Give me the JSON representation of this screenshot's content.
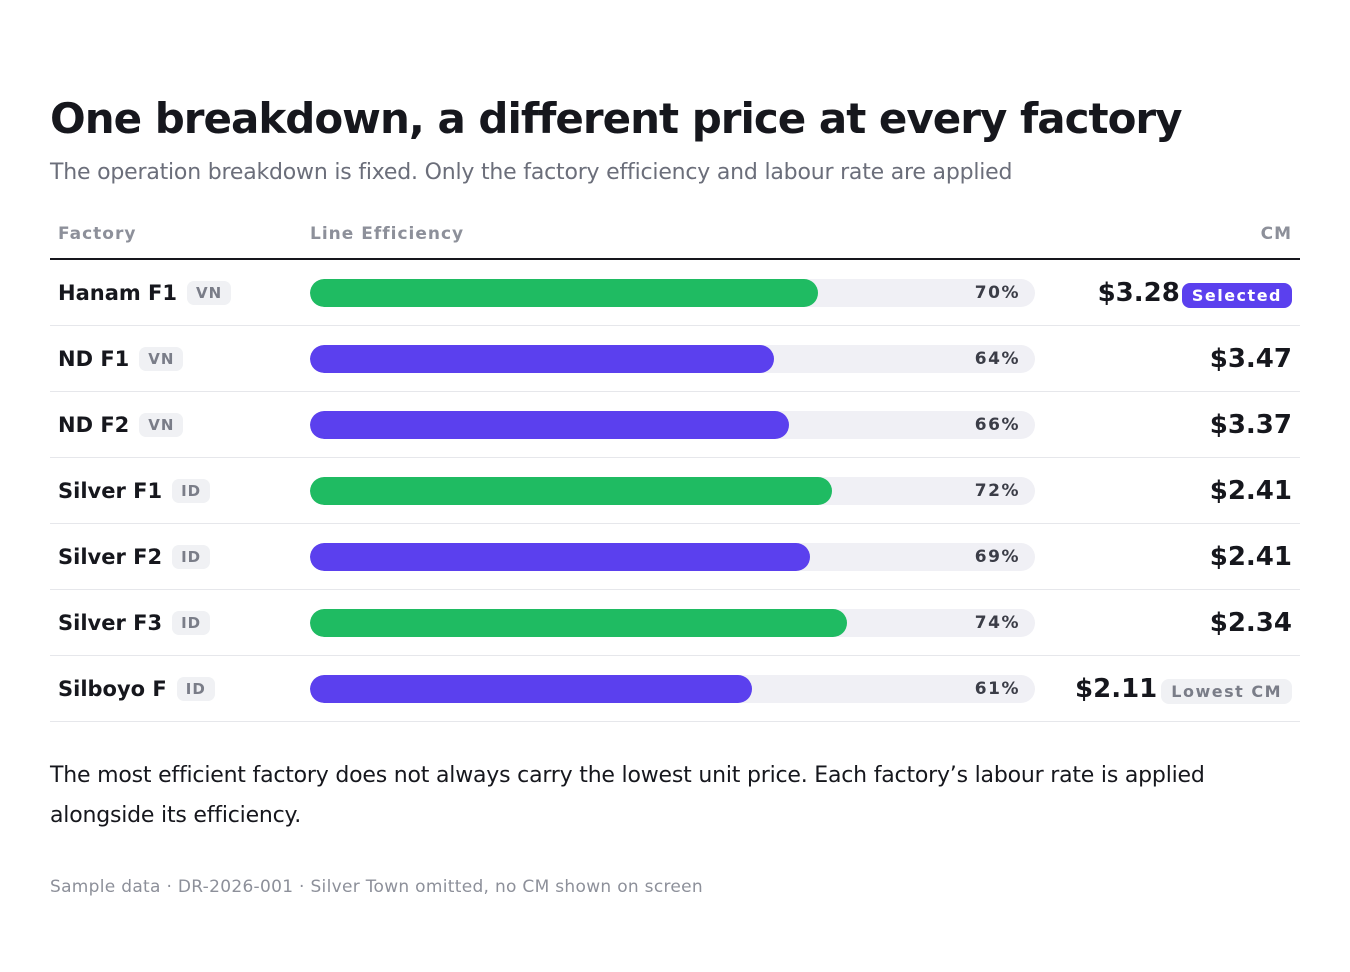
{
  "title": "One breakdown, a different price at every factory",
  "subtitle": "The operation breakdown is fixed. Only the factory efficiency and labour rate are applied",
  "columns": {
    "factory": "Factory",
    "efficiency": "Line Efficiency",
    "cm": "CM"
  },
  "colors": {
    "green": "#1fbb62",
    "purple": "#5b40ee",
    "track": "#f0f0f5"
  },
  "chart_data": {
    "type": "bar",
    "title": "One breakdown, a different price at every factory",
    "categories": [
      "Hanam F1",
      "ND F1",
      "ND F2",
      "Silver F1",
      "Silver F2",
      "Silver F3",
      "Silboyo F"
    ],
    "values": [
      70,
      64,
      66,
      72,
      69,
      74,
      61
    ],
    "ylim": [
      0,
      100
    ],
    "rows": [
      {
        "name": "Hanam F1",
        "country": "VN",
        "efficiency": 70,
        "efficiency_label": "70%",
        "bar_color": "green",
        "cm": "$3.28",
        "badge": "Selected",
        "badge_type": "selected"
      },
      {
        "name": "ND F1",
        "country": "VN",
        "efficiency": 64,
        "efficiency_label": "64%",
        "bar_color": "purple",
        "cm": "$3.47",
        "badge": "",
        "badge_type": ""
      },
      {
        "name": "ND F2",
        "country": "VN",
        "efficiency": 66,
        "efficiency_label": "66%",
        "bar_color": "purple",
        "cm": "$3.37",
        "badge": "",
        "badge_type": ""
      },
      {
        "name": "Silver F1",
        "country": "ID",
        "efficiency": 72,
        "efficiency_label": "72%",
        "bar_color": "green",
        "cm": "$2.41",
        "badge": "",
        "badge_type": ""
      },
      {
        "name": "Silver F2",
        "country": "ID",
        "efficiency": 69,
        "efficiency_label": "69%",
        "bar_color": "purple",
        "cm": "$2.41",
        "badge": "",
        "badge_type": ""
      },
      {
        "name": "Silver F3",
        "country": "ID",
        "efficiency": 74,
        "efficiency_label": "74%",
        "bar_color": "green",
        "cm": "$2.34",
        "badge": "",
        "badge_type": ""
      },
      {
        "name": "Silboyo F",
        "country": "ID",
        "efficiency": 61,
        "efficiency_label": "61%",
        "bar_color": "purple",
        "cm": "$2.11",
        "badge": "Lowest CM",
        "badge_type": "lowest"
      }
    ]
  },
  "note": "The most efficient factory does not always carry the lowest unit price. Each factory’s labour rate is applied alongside its efficiency.",
  "footer": "Sample data · DR-2026-001 · Silver Town omitted, no CM shown on screen"
}
